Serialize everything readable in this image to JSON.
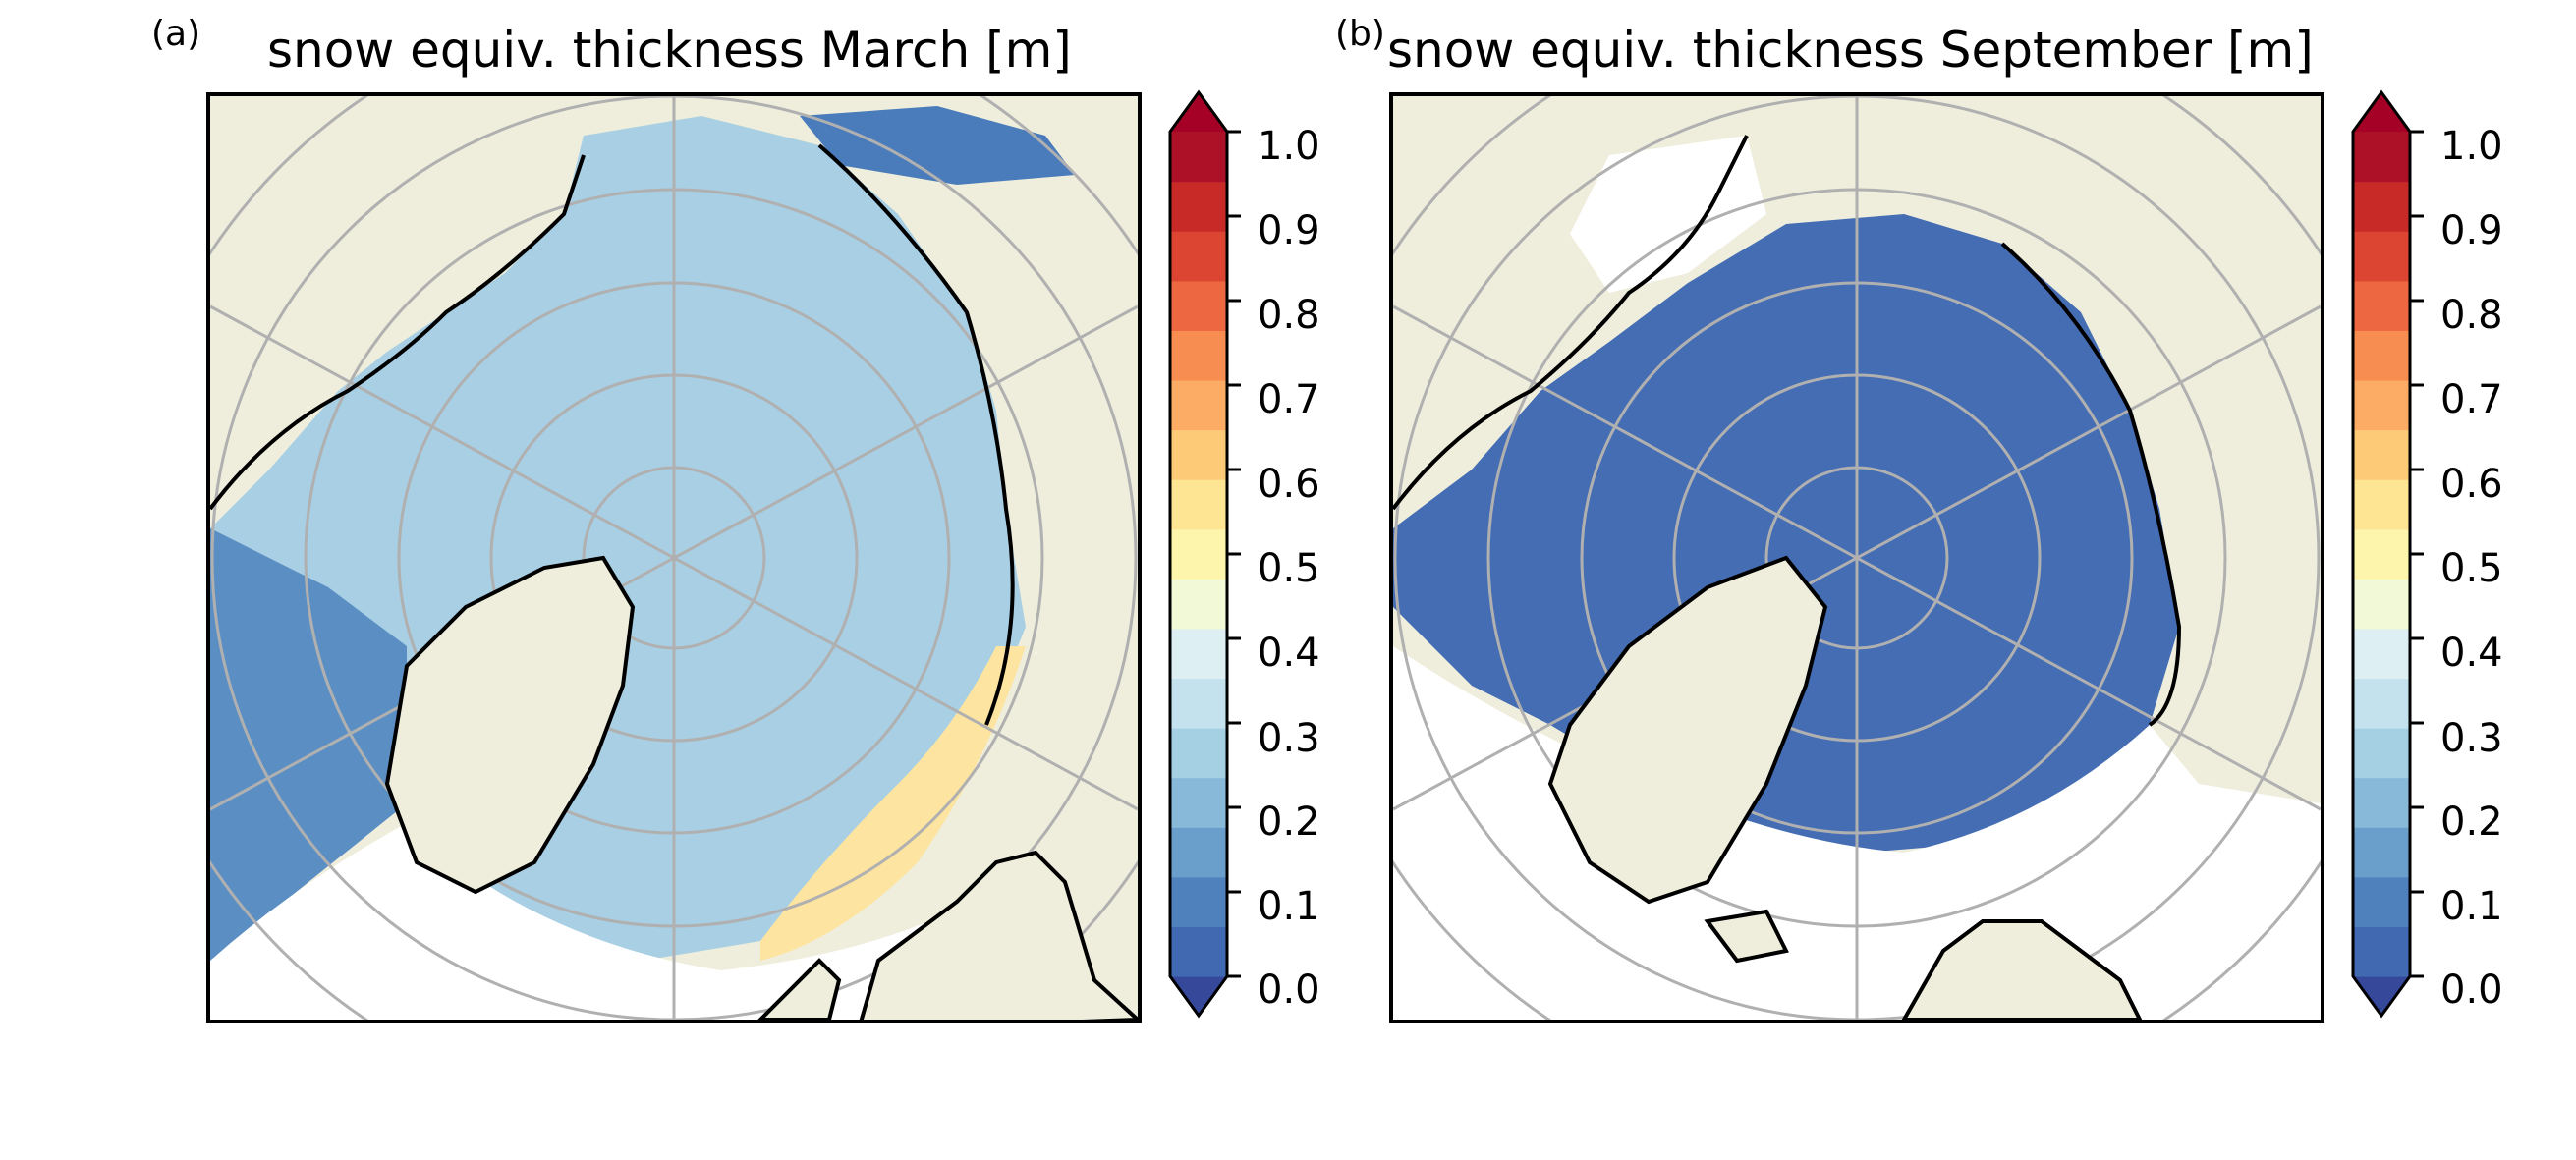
{
  "figure": {
    "panels": [
      {
        "letter": "(a)",
        "title": "snow equiv. thickness March [m]",
        "month": "March",
        "ice_fill": "light-blue",
        "colors": {
          "land": "#efeedc",
          "coast": "#000000",
          "grid": "#b0b0b0"
        }
      },
      {
        "letter": "(b)",
        "title": "snow equiv. thickness September [m]",
        "month": "September",
        "ice_fill": "dark-blue",
        "colors": {
          "land": "#efeedc",
          "coast": "#000000",
          "grid": "#b0b0b0"
        }
      }
    ],
    "colorbar": {
      "ticks": [
        "0.0",
        "0.1",
        "0.2",
        "0.3",
        "0.4",
        "0.5",
        "0.6",
        "0.7",
        "0.8",
        "0.9",
        "1.0"
      ],
      "range": [
        0.0,
        1.0
      ],
      "extend": "both",
      "colormap": "RdYlBu_r",
      "colors": [
        "#36489a",
        "#4069b1",
        "#4f81bc",
        "#6a9fcc",
        "#88b9d9",
        "#a5cfe3",
        "#c3e2ee",
        "#ddeff3",
        "#f1f9d7",
        "#fdf5ac",
        "#fee594",
        "#fdcb78",
        "#fcac64",
        "#f88d52",
        "#ed6740",
        "#db4531",
        "#c82a28",
        "#ac1128",
        "#a50026"
      ]
    }
  }
}
